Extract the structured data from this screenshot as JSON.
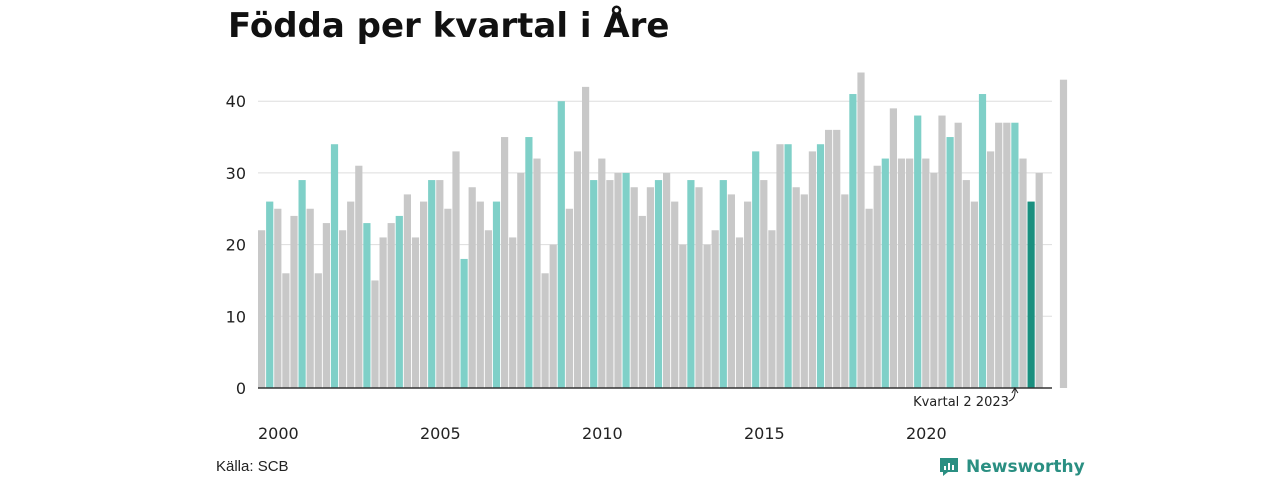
{
  "colors": {
    "q2_highlight": "#7fd0c8",
    "regular": "#c8c8c8",
    "latest": "#1a8f7f",
    "grid": "#dddddd",
    "axis": "#333333",
    "brand": "#2a8f82"
  },
  "source_text": "Källa: SCB",
  "brand": {
    "name": "Newsworthy",
    "icon": "newsworthy-logo-icon"
  },
  "chart_data": {
    "type": "bar",
    "title": "Födda per kvartal i Åre",
    "xlabel": "",
    "ylabel": "",
    "ylim": [
      0,
      44
    ],
    "yticks": [
      0,
      10,
      20,
      30,
      40
    ],
    "grid": true,
    "x_tick_labels": [
      "2000",
      "2005",
      "2010",
      "2015",
      "2020"
    ],
    "start_year": 2000,
    "annotation": {
      "text": "Kvartal 2 2023",
      "target_index": 93
    },
    "highlight_quarter": 2,
    "latest_index": 95,
    "values": [
      22,
      26,
      25,
      16,
      24,
      29,
      25,
      16,
      23,
      34,
      22,
      26,
      31,
      23,
      15,
      21,
      23,
      24,
      27,
      21,
      26,
      29,
      29,
      25,
      33,
      18,
      28,
      26,
      22,
      26,
      35,
      21,
      30,
      35,
      32,
      16,
      20,
      40,
      25,
      33,
      42,
      29,
      32,
      29,
      30,
      30,
      28,
      24,
      28,
      29,
      30,
      26,
      20,
      29,
      28,
      20,
      22,
      29,
      27,
      21,
      26,
      33,
      29,
      22,
      34,
      34,
      28,
      27,
      33,
      34,
      36,
      36,
      27,
      41,
      44,
      25,
      31,
      32,
      39,
      32,
      32,
      38,
      32,
      30,
      38,
      35,
      37,
      29,
      26,
      41,
      33,
      37,
      37,
      37,
      32,
      26,
      30,
      null,
      null,
      43
    ]
  }
}
